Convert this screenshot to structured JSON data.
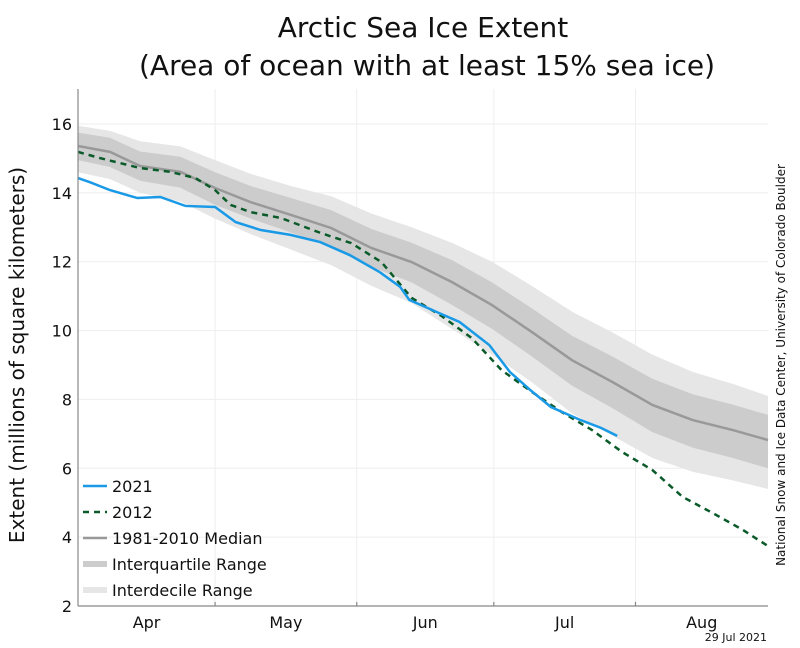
{
  "chart_data": {
    "type": "line",
    "title": "Arctic Sea Ice Extent",
    "subtitle": "(Area of ocean with at least 15% sea ice)",
    "xlabel": "",
    "ylabel": "Extent (millions of square kilometers)",
    "ylim": [
      2,
      17
    ],
    "yticks": [
      2,
      4,
      6,
      8,
      10,
      12,
      14,
      16
    ],
    "x_unit": "days since Apr 1",
    "xlim": [
      0,
      151
    ],
    "month_ticks": [
      0,
      30,
      61,
      91,
      122
    ],
    "month_labels": [
      "Apr",
      "May",
      "Jun",
      "Jul",
      "Aug"
    ],
    "month_label_centers": [
      15,
      45.5,
      76,
      106.5,
      136.5
    ],
    "grid": true,
    "legend_position": "bottom-left",
    "credit": "National Snow and Ice Data Center, University of Colorado Boulder",
    "date_stamp": "29 Jul 2021",
    "colors": {
      "y2021": "#1a9ae6",
      "y2012": "#0b5b2a",
      "median": "#999999",
      "interquartile": "#cccccc",
      "interdecile": "#e6e6e6",
      "grid": "#eeeeee",
      "axis": "#888888"
    },
    "series": [
      {
        "name": "2021",
        "style": "solid",
        "x": [
          0,
          2.6,
          7,
          13,
          18,
          23.5,
          30,
          34.5,
          40,
          46.5,
          53,
          59.5,
          66,
          70.5,
          72.5,
          79,
          83.5,
          90,
          94.5,
          99,
          103.5,
          110,
          114.5,
          118
        ],
        "values": [
          14.43,
          14.31,
          14.08,
          13.85,
          13.88,
          13.62,
          13.59,
          13.15,
          12.92,
          12.78,
          12.57,
          12.19,
          11.7,
          11.27,
          10.89,
          10.51,
          10.25,
          9.58,
          8.8,
          8.27,
          7.78,
          7.4,
          7.17,
          6.94
        ]
      },
      {
        "name": "2012",
        "style": "dashed",
        "x": [
          0,
          4.8,
          13.6,
          20.2,
          25.7,
          30,
          33.4,
          37.8,
          44.4,
          53.2,
          59.8,
          66.4,
          73,
          79.6,
          86.2,
          92.7,
          99.3,
          105.9,
          112.5,
          119.1,
          125.7,
          132.3,
          138.9,
          145.5,
          151
        ],
        "values": [
          15.19,
          15.01,
          14.72,
          14.61,
          14.43,
          14.08,
          13.65,
          13.44,
          13.27,
          12.83,
          12.54,
          11.99,
          10.95,
          10.42,
          9.78,
          8.85,
          8.22,
          7.63,
          7.11,
          6.47,
          5.95,
          5.17,
          4.7,
          4.21,
          3.74
        ]
      },
      {
        "name": "1981-2010 Median",
        "style": "solid",
        "x": [
          0,
          7,
          13.6,
          22.4,
          30,
          37.8,
          46.6,
          55.4,
          64.2,
          73,
          81.8,
          90.6,
          99.3,
          108.1,
          116.9,
          125.7,
          134.5,
          143.3,
          151
        ],
        "values": [
          15.36,
          15.19,
          14.78,
          14.61,
          14.14,
          13.73,
          13.36,
          12.98,
          12.4,
          11.99,
          11.41,
          10.74,
          9.96,
          9.14,
          8.51,
          7.84,
          7.4,
          7.11,
          6.82
        ]
      }
    ],
    "bands": [
      {
        "name": "Interquartile Range",
        "x": [
          0,
          7,
          13.6,
          22.4,
          30,
          37.8,
          46.6,
          55.4,
          64.2,
          73,
          81.8,
          90.6,
          99.3,
          108.1,
          116.9,
          125.7,
          134.5,
          143.3,
          151
        ],
        "lower": [
          14.95,
          14.75,
          14.35,
          14.15,
          13.65,
          13.25,
          12.85,
          12.45,
          11.85,
          11.4,
          10.75,
          10.05,
          9.25,
          8.4,
          7.75,
          7.05,
          6.6,
          6.3,
          6.0
        ],
        "upper": [
          15.75,
          15.6,
          15.2,
          15.05,
          14.6,
          14.2,
          13.85,
          13.5,
          12.95,
          12.55,
          12.05,
          11.4,
          10.65,
          9.85,
          9.25,
          8.6,
          8.15,
          7.85,
          7.55
        ]
      },
      {
        "name": "Interdecile Range",
        "x": [
          0,
          7,
          13.6,
          22.4,
          30,
          37.8,
          46.6,
          55.4,
          64.2,
          73,
          81.8,
          90.6,
          99.3,
          108.1,
          116.9,
          125.7,
          134.5,
          143.3,
          151
        ],
        "lower": [
          14.6,
          14.4,
          14.0,
          13.75,
          13.25,
          12.8,
          12.35,
          11.9,
          11.3,
          10.8,
          10.05,
          9.3,
          8.5,
          7.6,
          6.95,
          6.3,
          5.9,
          5.65,
          5.4
        ],
        "upper": [
          15.95,
          15.8,
          15.5,
          15.35,
          14.95,
          14.55,
          14.2,
          13.9,
          13.4,
          13.0,
          12.55,
          12.0,
          11.3,
          10.55,
          9.95,
          9.3,
          8.8,
          8.45,
          8.1
        ]
      }
    ],
    "legend": [
      {
        "label": "2021",
        "kind": "y2021"
      },
      {
        "label": "2012",
        "kind": "y2012"
      },
      {
        "label": "1981-2010 Median",
        "kind": "median"
      },
      {
        "label": "Interquartile Range",
        "kind": "interquartile"
      },
      {
        "label": "Interdecile Range",
        "kind": "interdecile"
      }
    ]
  }
}
